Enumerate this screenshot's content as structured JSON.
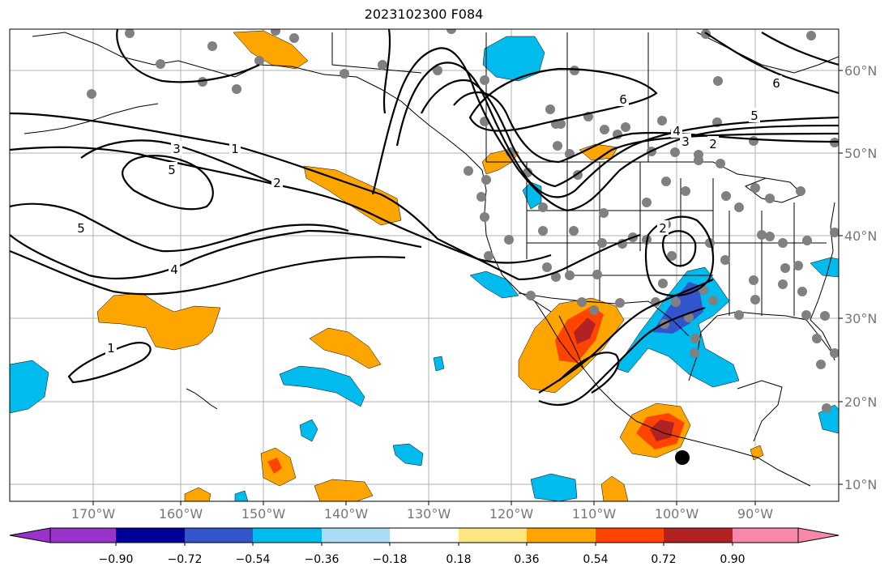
{
  "title": "2023102300 F084",
  "map": {
    "lon_ticks": [
      "170°W",
      "160°W",
      "150°W",
      "140°W",
      "130°W",
      "120°W",
      "110°W",
      "100°W",
      "90°W"
    ],
    "lat_ticks": [
      "60°N",
      "50°N",
      "40°N",
      "30°N",
      "20°N",
      "10°N"
    ],
    "contour_labels": [
      "1",
      "3",
      "5",
      "2",
      "5",
      "4",
      "1",
      "6",
      "5",
      "4",
      "3",
      "2",
      "6",
      "2"
    ]
  },
  "colorbar": {
    "tick_labels": [
      "−0.90",
      "−0.72",
      "−0.54",
      "−0.36",
      "−0.18",
      "0.18",
      "0.36",
      "0.54",
      "0.72",
      "0.90"
    ],
    "colors": [
      "#9933cc",
      "#000099",
      "#3355cc",
      "#00bbee",
      "#aaddf5",
      "#ffffff",
      "#ffe680",
      "#ffa500",
      "#ff4400",
      "#b22222",
      "#f888aa"
    ]
  },
  "colors": {
    "pos_light": "#ffe680",
    "pos_mid": "#ffa500",
    "pos_strong": "#ff4400",
    "pos_max": "#b22222",
    "neg_light": "#aaddf5",
    "neg_mid": "#00bbee",
    "neg_strong": "#3355cc",
    "station": "#808080"
  }
}
